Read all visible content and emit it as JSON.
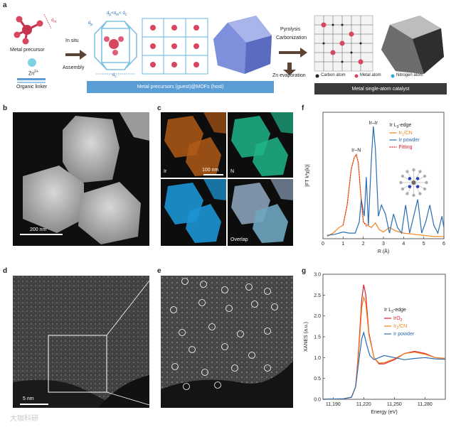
{
  "panels": {
    "a": {
      "label": "a",
      "metal_precursor": "Metal precursor",
      "zn": "Zn",
      "zn_sup": "2+",
      "organic_linker": "Organic linker",
      "in_situ": "In situ",
      "assembly": "Assembly",
      "pyrolysis": "Pyrolysis",
      "carbonization": "Carbonization",
      "zn_evaporation": "Zn evaporation",
      "blue_band": "Metal precursors (guest)@MOFs (host)",
      "dark_band": "Metal single-atom catalyst",
      "legend_carbon": "Carbon atom",
      "legend_metal": "Metal atom",
      "legend_nitrogen": "Nitrogen atom",
      "dm": "d",
      "dm_sub": "m",
      "dp": "d",
      "dp_sub": "p",
      "dc": "d",
      "dc_sub": "c",
      "ineq": "< d",
      "ineq_sub2": "c",
      "dp2": "d",
      "dp2_sub": "p"
    },
    "b": {
      "label": "b",
      "scale": "200 nm"
    },
    "c": {
      "label": "c",
      "ir": "Ir",
      "n": "N",
      "overlap": "Overlap",
      "scale": "100 nm"
    },
    "d": {
      "label": "d",
      "scale": "5 nm"
    },
    "e": {
      "label": "e"
    },
    "f": {
      "label": "f"
    },
    "g": {
      "label": "g"
    }
  },
  "watermark": "大咖科研",
  "colors": {
    "blue": "#2a6db0",
    "orange": "#f0821e",
    "red": "#d9212c",
    "ir_map": "#c8641c",
    "n_map": "#1fb58a",
    "overlap": "#1c95d4"
  },
  "chart_data": [
    {
      "type": "line",
      "panel": "f",
      "title": "Ir L3-edge",
      "xlabel": "R (Å)",
      "ylabel": "|FT k³χ(k)|",
      "xlim": [
        0,
        6
      ],
      "xticks": [
        "0",
        "1",
        "2",
        "3",
        "4",
        "5",
        "6"
      ],
      "legend_title": "Ir L3-edge",
      "legend_title_main": "Ir L",
      "legend_title_sub": "3",
      "legend_title_end": "-edge",
      "annotations": [
        "Ir–Ir",
        "Ir–N"
      ],
      "series": [
        {
          "name": "Ir1/CN",
          "name_main": "Ir",
          "name_sub": "1",
          "name_end": "/CN",
          "color": "#f0821e",
          "x": [
            0.2,
            0.5,
            0.8,
            1.0,
            1.2,
            1.4,
            1.55,
            1.65,
            1.75,
            1.85,
            2.0,
            2.2,
            2.4,
            2.6,
            2.8,
            3.0,
            3.3,
            3.6,
            4.0,
            4.5,
            5.0,
            5.5,
            6.0
          ],
          "y": [
            0.02,
            0.05,
            0.1,
            0.12,
            0.3,
            0.62,
            0.72,
            0.75,
            0.68,
            0.45,
            0.15,
            0.12,
            0.1,
            0.14,
            0.08,
            0.06,
            0.1,
            0.07,
            0.05,
            0.04,
            0.03,
            0.02,
            0.02
          ]
        },
        {
          "name": "Ir powder",
          "color": "#2a6db0",
          "x": [
            0.2,
            0.6,
            1.0,
            1.3,
            1.6,
            1.8,
            1.9,
            2.05,
            2.15,
            2.25,
            2.4,
            2.5,
            2.6,
            2.75,
            2.9,
            3.1,
            3.3,
            3.5,
            3.7,
            3.9,
            4.1,
            4.3,
            4.5,
            4.7,
            4.9,
            5.1,
            5.3,
            5.5,
            5.7,
            5.9,
            6.0
          ],
          "y": [
            0.03,
            0.04,
            0.06,
            0.05,
            0.05,
            0.15,
            0.35,
            0.2,
            0.55,
            0.12,
            0.7,
            1.0,
            0.8,
            0.2,
            0.3,
            0.22,
            0.05,
            0.22,
            0.1,
            0.05,
            0.3,
            0.05,
            0.2,
            0.35,
            0.05,
            0.15,
            0.3,
            0.12,
            0.05,
            0.2,
            0.1
          ]
        },
        {
          "name": "Fitting",
          "color": "#d9212c",
          "dashed": true,
          "x": [
            1.0,
            1.2,
            1.4,
            1.55,
            1.65,
            1.75,
            1.85,
            2.0,
            2.2
          ],
          "y": [
            0.12,
            0.3,
            0.62,
            0.72,
            0.75,
            0.68,
            0.45,
            0.15,
            0.1
          ]
        }
      ]
    },
    {
      "type": "line",
      "panel": "g",
      "title": "Ir L3-edge",
      "xlabel": "Energy (eV)",
      "ylabel": "XANES (a.u.)",
      "xlim": [
        11180,
        11300
      ],
      "ylim": [
        0.0,
        3.0
      ],
      "xticks": [
        "11,190",
        "11,220",
        "11,250",
        "11,280"
      ],
      "yticks": [
        "0.0",
        "0.5",
        "1.0",
        "1.5",
        "2.0",
        "2.5",
        "3.0"
      ],
      "legend_title": "Ir L3-edge",
      "legend_title_main": "Ir L",
      "legend_title_sub": "3",
      "legend_title_end": "-edge",
      "series": [
        {
          "name": "IrO2",
          "name_main": "IrO",
          "name_sub": "2",
          "name_end": "",
          "color": "#d9212c",
          "x": [
            11180,
            11200,
            11208,
            11212,
            11215,
            11218,
            11220,
            11222,
            11225,
            11230,
            11235,
            11240,
            11250,
            11260,
            11270,
            11280,
            11290,
            11300
          ],
          "y": [
            0.0,
            0.01,
            0.05,
            0.3,
            1.2,
            2.4,
            2.75,
            2.5,
            1.6,
            1.0,
            0.85,
            0.85,
            0.95,
            1.1,
            1.15,
            1.1,
            1.0,
            0.98
          ]
        },
        {
          "name": "Ir1/CN",
          "name_main": "Ir",
          "name_sub": "1",
          "name_end": "/CN",
          "color": "#f0821e",
          "x": [
            11180,
            11200,
            11208,
            11212,
            11215,
            11218,
            11220,
            11222,
            11225,
            11230,
            11235,
            11240,
            11250,
            11260,
            11270,
            11280,
            11290,
            11300
          ],
          "y": [
            0.0,
            0.01,
            0.05,
            0.3,
            1.1,
            2.2,
            2.45,
            2.3,
            1.55,
            1.0,
            0.87,
            0.88,
            0.97,
            1.1,
            1.13,
            1.08,
            1.0,
            0.98
          ]
        },
        {
          "name": "Ir powder",
          "color": "#2a6db0",
          "x": [
            11180,
            11200,
            11208,
            11212,
            11215,
            11218,
            11220,
            11223,
            11226,
            11230,
            11235,
            11240,
            11250,
            11260,
            11270,
            11280,
            11290,
            11300
          ],
          "y": [
            0.0,
            0.01,
            0.05,
            0.3,
            0.9,
            1.45,
            1.6,
            1.3,
            1.05,
            0.95,
            1.0,
            1.05,
            1.0,
            0.95,
            0.98,
            1.0,
            0.97,
            0.96
          ]
        }
      ]
    }
  ]
}
